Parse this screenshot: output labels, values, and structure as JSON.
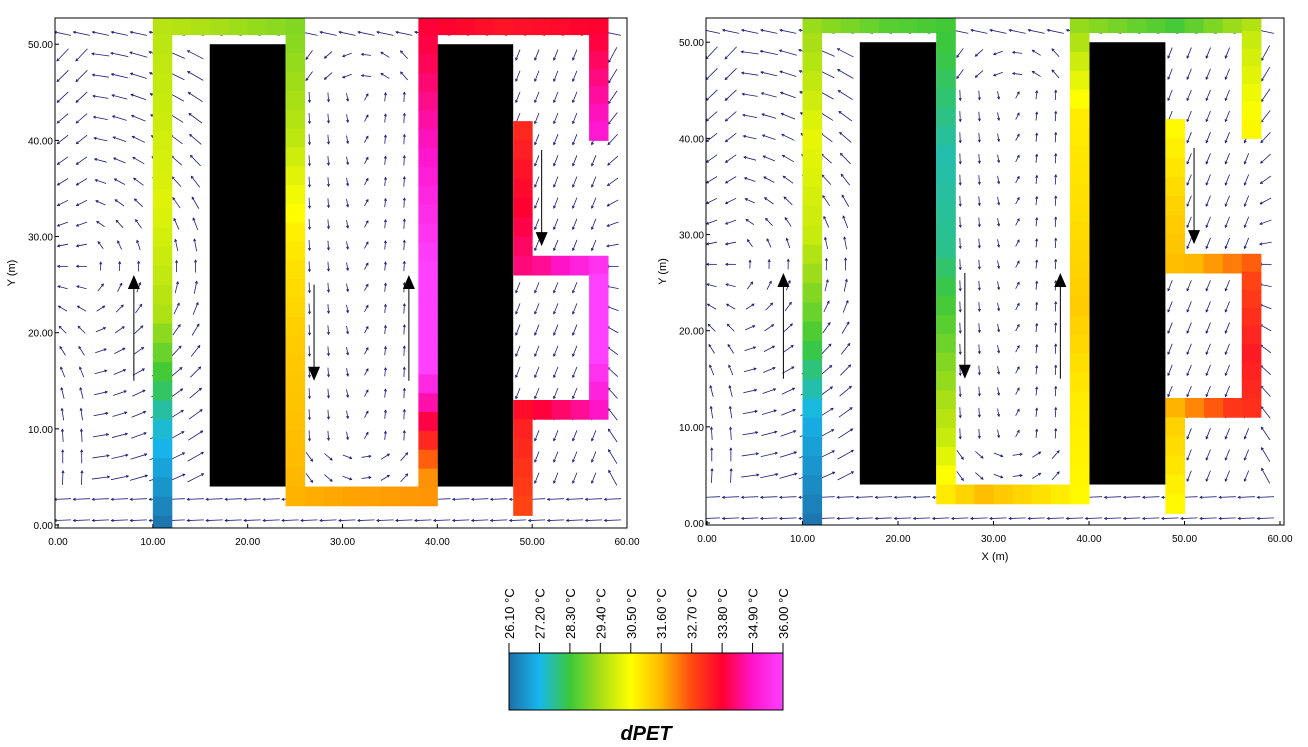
{
  "chart_data": [
    {
      "type": "vector-field",
      "panel": "left",
      "xlabel": "",
      "ylabel": "Y (m)",
      "xlim": [
        0,
        60
      ],
      "ylim": [
        0,
        54
      ],
      "x_tick_labels": [
        "0.00",
        "10.00",
        "20.00",
        "30.00",
        "40.00",
        "50.00",
        "60.00"
      ],
      "y_tick_labels": [
        "0.00",
        "10.00",
        "20.00",
        "30.00",
        "40.00",
        "50.00"
      ],
      "buildings": [
        {
          "x": [
            16,
            24
          ],
          "y": [
            4,
            50
          ]
        },
        {
          "x": [
            40,
            48
          ],
          "y": [
            4,
            50
          ]
        }
      ],
      "big_arrows": [
        {
          "x": 8,
          "y_from": 15,
          "y_to": 26
        },
        {
          "x": 27,
          "y_from": 25,
          "y_to": 15
        },
        {
          "x": 37,
          "y_from": 15,
          "y_to": 26
        },
        {
          "x": 51,
          "y_from": 39,
          "y_to": 29
        }
      ],
      "dpet_path_cells": [
        {
          "path": [
            [
              11,
              0
            ],
            [
              11,
              52
            ],
            [
              25,
              52
            ],
            [
              25,
              3
            ],
            [
              39,
              3
            ],
            [
              39,
              52
            ],
            [
              57,
              52
            ],
            [
              57,
              41
            ]
          ],
          "dpet": [
            26.2,
            27.5,
            29.5,
            30.1,
            29.8,
            29.5,
            29.0,
            29.6,
            30.8,
            31.3,
            31.5,
            31.8,
            32.0,
            36.0,
            36.0,
            35.0,
            34.0,
            33.5,
            33.8,
            35.0
          ]
        },
        {
          "path": [
            [
              49,
              41
            ],
            [
              49,
              27
            ],
            [
              57,
              27
            ],
            [
              57,
              12
            ],
            [
              49,
              12
            ],
            [
              49,
              2
            ]
          ],
          "dpet": [
            33.2,
            33.8,
            34.5,
            36.0,
            36.0,
            34.5,
            33.3,
            32.8
          ]
        }
      ]
    },
    {
      "type": "vector-field",
      "panel": "right",
      "xlabel": "X (m)",
      "ylabel": "Y (m)",
      "xlim": [
        0,
        60
      ],
      "ylim": [
        0,
        54
      ],
      "x_tick_labels": [
        "0.00",
        "10.00",
        "20.00",
        "30.00",
        "40.00",
        "50.00",
        "60.00"
      ],
      "y_tick_labels": [
        "0.00",
        "10.00",
        "20.00",
        "30.00",
        "40.00",
        "50.00"
      ],
      "buildings": [
        {
          "x": [
            16,
            24
          ],
          "y": [
            4,
            50
          ]
        },
        {
          "x": [
            40,
            48
          ],
          "y": [
            4,
            50
          ]
        }
      ],
      "big_arrows": [
        {
          "x": 8,
          "y_from": 15,
          "y_to": 26
        },
        {
          "x": 27,
          "y_from": 26,
          "y_to": 15
        },
        {
          "x": 37,
          "y_from": 15,
          "y_to": 26
        },
        {
          "x": 51,
          "y_from": 39,
          "y_to": 29
        }
      ],
      "dpet_path_cells": [
        {
          "path": [
            [
              11,
              0
            ],
            [
              11,
              52
            ],
            [
              25,
              52
            ],
            [
              25,
              3
            ],
            [
              39,
              3
            ],
            [
              39,
              52
            ],
            [
              57,
              52
            ],
            [
              57,
              41
            ]
          ],
          "dpet": [
            26.2,
            27.0,
            28.5,
            29.8,
            30.2,
            29.4,
            28.6,
            28.2,
            27.6,
            27.8,
            28.8,
            29.8,
            31.5,
            30.6,
            30.8,
            31.3,
            31.0,
            30.8,
            29.2,
            28.4,
            29.8,
            30.6
          ]
        },
        {
          "path": [
            [
              49,
              41
            ],
            [
              49,
              27
            ],
            [
              57,
              27
            ],
            [
              57,
              12
            ],
            [
              49,
              12
            ],
            [
              49,
              2
            ]
          ],
          "dpet": [
            30.6,
            31.2,
            31.6,
            32.8,
            33.4,
            33.0,
            31.2,
            30.6
          ]
        }
      ]
    }
  ],
  "colorbar": {
    "title": "dPET",
    "tick_labels": [
      "26.10 °C",
      "27.20 °C",
      "28.30 °C",
      "29.40 °C",
      "30.50 °C",
      "31.60 °C",
      "32.70 °C",
      "33.80 °C",
      "34.90 °C",
      "36.00 °C"
    ],
    "min": 26.1,
    "max": 36.0,
    "stops": [
      {
        "v": 26.1,
        "color": "#1e6fa8"
      },
      {
        "v": 27.2,
        "color": "#16b8ee"
      },
      {
        "v": 28.3,
        "color": "#3cc83a"
      },
      {
        "v": 29.4,
        "color": "#a8df16"
      },
      {
        "v": 30.5,
        "color": "#ffff00"
      },
      {
        "v": 31.6,
        "color": "#ffb800"
      },
      {
        "v": 32.7,
        "color": "#ff4a10"
      },
      {
        "v": 33.8,
        "color": "#ff0030"
      },
      {
        "v": 34.9,
        "color": "#ff14cc"
      },
      {
        "v": 36.0,
        "color": "#ff40ff"
      }
    ]
  },
  "colors": {
    "building": "#000000",
    "vector": "#1a1a7a",
    "big_arrow": "#000000"
  }
}
